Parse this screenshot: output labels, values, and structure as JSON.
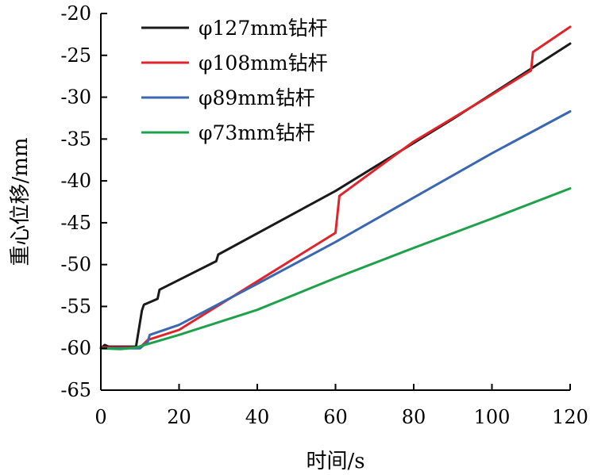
{
  "chart_data": {
    "type": "line",
    "title": "",
    "xlabel": "时间/s",
    "ylabel": "重心位移/mm",
    "xlim": [
      0,
      120
    ],
    "ylim": [
      -65,
      -20
    ],
    "xticks": [
      0,
      20,
      40,
      60,
      80,
      100,
      120
    ],
    "yticks": [
      -20,
      -25,
      -30,
      -35,
      -40,
      -45,
      -50,
      -55,
      -60,
      -65
    ],
    "xtick_labels": [
      "0",
      "20",
      "40",
      "60",
      "80",
      "100",
      "120"
    ],
    "ytick_labels": [
      "-20",
      "-25",
      "-30",
      "-35",
      "-40",
      "-45",
      "-50",
      "-55",
      "-60",
      "-65"
    ],
    "grid": false,
    "legend_position": "top-left",
    "series": [
      {
        "name": "φ127mm钻杆",
        "color": "#1a1a1a",
        "x": [
          0,
          1,
          2,
          9,
          10.5,
          11,
          14.5,
          15,
          29.5,
          30,
          60,
          90,
          120
        ],
        "y": [
          -60,
          -59.6,
          -59.8,
          -59.8,
          -55.5,
          -54.8,
          -54.1,
          -53.0,
          -49.6,
          -48.8,
          -41.2,
          -32.6,
          -23.6
        ]
      },
      {
        "name": "φ108mm钻杆",
        "color": "#e0242b",
        "x": [
          0,
          10,
          12,
          20,
          40,
          60,
          61,
          80,
          100,
          110,
          110.5,
          120
        ],
        "y": [
          -59.9,
          -59.9,
          -59.0,
          -57.8,
          -52.0,
          -46.2,
          -41.8,
          -35.3,
          -29.7,
          -26.8,
          -24.6,
          -21.6
        ]
      },
      {
        "name": "φ89mm钻杆",
        "color": "#3b67b2",
        "x": [
          0,
          10,
          12,
          12.5,
          20,
          40,
          60,
          80,
          100,
          120
        ],
        "y": [
          -60,
          -60,
          -59.2,
          -58.4,
          -57.2,
          -52.3,
          -47.3,
          -42.0,
          -36.7,
          -31.7
        ]
      },
      {
        "name": "φ73mm钻杆",
        "color": "#1fa04a",
        "x": [
          0,
          5,
          9,
          20,
          40,
          60,
          80,
          100,
          120
        ],
        "y": [
          -60,
          -60.1,
          -59.9,
          -58.4,
          -55.4,
          -51.6,
          -48.0,
          -44.5,
          -40.9
        ]
      }
    ]
  }
}
